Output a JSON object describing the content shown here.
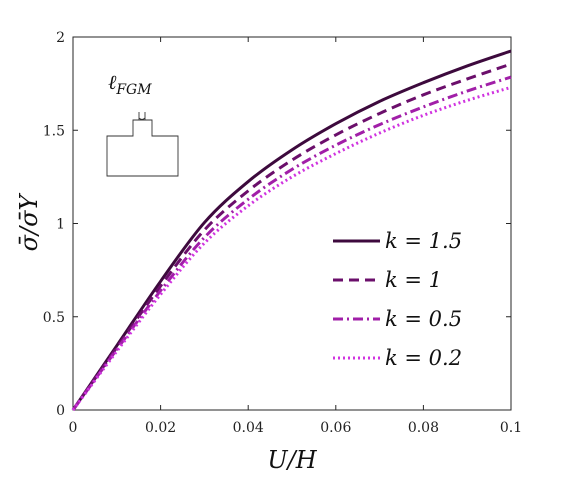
{
  "chart_data": {
    "type": "line",
    "xlabel": "U/H",
    "ylabel": "σ̄/σ̄Y",
    "xlim": [
      0,
      0.1
    ],
    "ylim": [
      0,
      2
    ],
    "xticks": [
      0,
      0.02,
      0.04,
      0.06,
      0.08,
      0.1
    ],
    "xtick_labels": [
      "0",
      "0.02",
      "0.04",
      "0.06",
      "0.08",
      "0.1"
    ],
    "yticks": [
      0,
      0.5,
      1,
      1.5,
      2
    ],
    "ytick_labels": [
      "0",
      "0.5",
      "1",
      "1.5",
      "2"
    ],
    "grid": false,
    "legend_position": "center-right",
    "annotation": "ℓFGM",
    "series": [
      {
        "name": "k = 1.5",
        "color": "#3d0a3d",
        "dash": "solid",
        "x": [
          0,
          0.01,
          0.02,
          0.03,
          0.04,
          0.05,
          0.06,
          0.07,
          0.08,
          0.09,
          0.1
        ],
        "y": [
          0,
          0.345,
          0.69,
          1.005,
          1.225,
          1.395,
          1.535,
          1.655,
          1.755,
          1.845,
          1.925
        ]
      },
      {
        "name": "k = 1",
        "color": "#6b0f6b",
        "dash": "dashed",
        "x": [
          0,
          0.01,
          0.02,
          0.03,
          0.04,
          0.05,
          0.06,
          0.07,
          0.08,
          0.09,
          0.1
        ],
        "y": [
          0,
          0.335,
          0.665,
          0.965,
          1.175,
          1.34,
          1.475,
          1.59,
          1.69,
          1.775,
          1.855
        ]
      },
      {
        "name": "k = 0.5",
        "color": "#a11fa8",
        "dash": "dashdot",
        "x": [
          0,
          0.01,
          0.02,
          0.03,
          0.04,
          0.05,
          0.06,
          0.07,
          0.08,
          0.09,
          0.1
        ],
        "y": [
          0,
          0.325,
          0.64,
          0.925,
          1.13,
          1.29,
          1.42,
          1.53,
          1.625,
          1.71,
          1.785
        ]
      },
      {
        "name": "k = 0.2",
        "color": "#d033e0",
        "dash": "dotted",
        "x": [
          0,
          0.01,
          0.02,
          0.03,
          0.04,
          0.05,
          0.06,
          0.07,
          0.08,
          0.09,
          0.1
        ],
        "y": [
          0,
          0.315,
          0.62,
          0.895,
          1.095,
          1.25,
          1.375,
          1.485,
          1.58,
          1.66,
          1.73
        ]
      }
    ]
  }
}
